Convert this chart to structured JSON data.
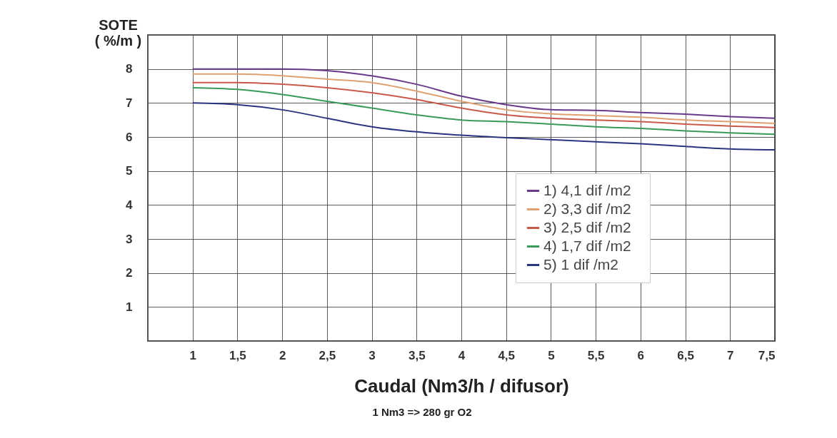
{
  "chart_data": {
    "type": "line",
    "ylabel": "SOTE\n( %/m )",
    "xlabel": "Caudal (Nm3/h / difusor)",
    "annotations": [
      "1 Nm3 => 280 gr O2"
    ],
    "xlim": [
      0.5,
      7.5
    ],
    "ylim": [
      0,
      9
    ],
    "xticks": [
      1,
      {
        "value": 1.5,
        "label": "1,5"
      },
      2,
      {
        "value": 2.5,
        "label": "2,5"
      },
      3,
      {
        "value": 3.5,
        "label": "3,5"
      },
      4,
      {
        "value": 4.5,
        "label": "4,5"
      },
      5,
      {
        "value": 5.5,
        "label": "5,5"
      },
      6,
      {
        "value": 6.5,
        "label": "6,5"
      },
      7,
      {
        "value": 7.5,
        "label": "7,5"
      }
    ],
    "yticks": [
      1,
      2,
      3,
      4,
      5,
      6,
      7,
      8
    ],
    "grid": true,
    "legend": "bottom right",
    "marker": "none",
    "line_style": "solid",
    "x": [
      1,
      1.5,
      2,
      2.5,
      3,
      3.5,
      4,
      4.5,
      5,
      5.5,
      6,
      6.5,
      7,
      7.5
    ],
    "series": [
      {
        "name": "1)   4,1 dif /m2",
        "color": "#6a3a8a",
        "values": [
          8.0,
          8.0,
          8.0,
          7.95,
          7.8,
          7.55,
          7.2,
          6.95,
          6.8,
          6.78,
          6.72,
          6.67,
          6.6,
          6.55
        ]
      },
      {
        "name": "2)   3,3 dif /m2",
        "color": "#e0a070",
        "values": [
          7.85,
          7.85,
          7.8,
          7.7,
          7.6,
          7.35,
          7.05,
          6.8,
          6.68,
          6.63,
          6.58,
          6.5,
          6.45,
          6.4
        ]
      },
      {
        "name": "3)   2,5 dif /m2",
        "color": "#c85a4a",
        "values": [
          7.6,
          7.6,
          7.55,
          7.45,
          7.3,
          7.1,
          6.85,
          6.65,
          6.55,
          6.5,
          6.45,
          6.38,
          6.32,
          6.28
        ]
      },
      {
        "name": "4)   1,7 dif /m2",
        "color": "#3a9a5a",
        "values": [
          7.45,
          7.4,
          7.25,
          7.05,
          6.85,
          6.65,
          6.5,
          6.45,
          6.38,
          6.3,
          6.25,
          6.18,
          6.12,
          6.08
        ]
      },
      {
        "name": "5)     1  dif /m2",
        "color": "#2a3580",
        "values": [
          7.0,
          6.95,
          6.8,
          6.55,
          6.3,
          6.15,
          6.05,
          5.98,
          5.92,
          5.86,
          5.8,
          5.72,
          5.65,
          5.62
        ]
      }
    ]
  }
}
